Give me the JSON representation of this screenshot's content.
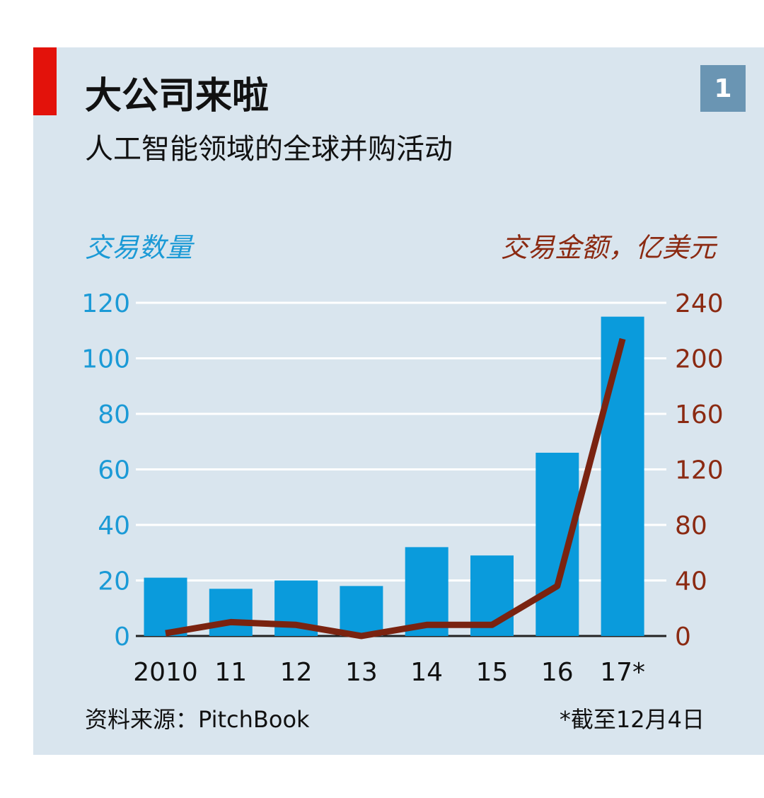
{
  "header": {
    "badge": "1",
    "title": "大公司来啦",
    "subtitle": "人工智能领域的全球并购活动"
  },
  "footer": {
    "source": "资料来源：PitchBook",
    "note": "*截至12月4日"
  },
  "colors": {
    "panel": "#d9e5ee",
    "accent": "#e3120b",
    "bars": "#0a9bdc",
    "line": "#7a2310",
    "left_axis_text": "#1b9ad6",
    "right_axis_text": "#8b2a12"
  },
  "chart_data": {
    "type": "bar+line",
    "categories": [
      "2010",
      "11",
      "12",
      "13",
      "14",
      "15",
      "16",
      "17*"
    ],
    "left_axis": {
      "label": "交易数量",
      "ylim": [
        0,
        120
      ],
      "ticks": [
        0,
        20,
        40,
        60,
        80,
        100,
        120
      ]
    },
    "right_axis": {
      "label": "交易金额，亿美元",
      "ylim": [
        0,
        240
      ],
      "ticks": [
        0,
        40,
        80,
        120,
        160,
        200,
        240
      ]
    },
    "series": [
      {
        "kind": "bar",
        "axis": "left",
        "values": [
          21,
          17,
          20,
          18,
          32,
          29,
          66,
          115
        ]
      },
      {
        "kind": "line",
        "axis": "right",
        "values": [
          2,
          10,
          8,
          0,
          8,
          8,
          36,
          214
        ]
      }
    ],
    "grid": true
  }
}
